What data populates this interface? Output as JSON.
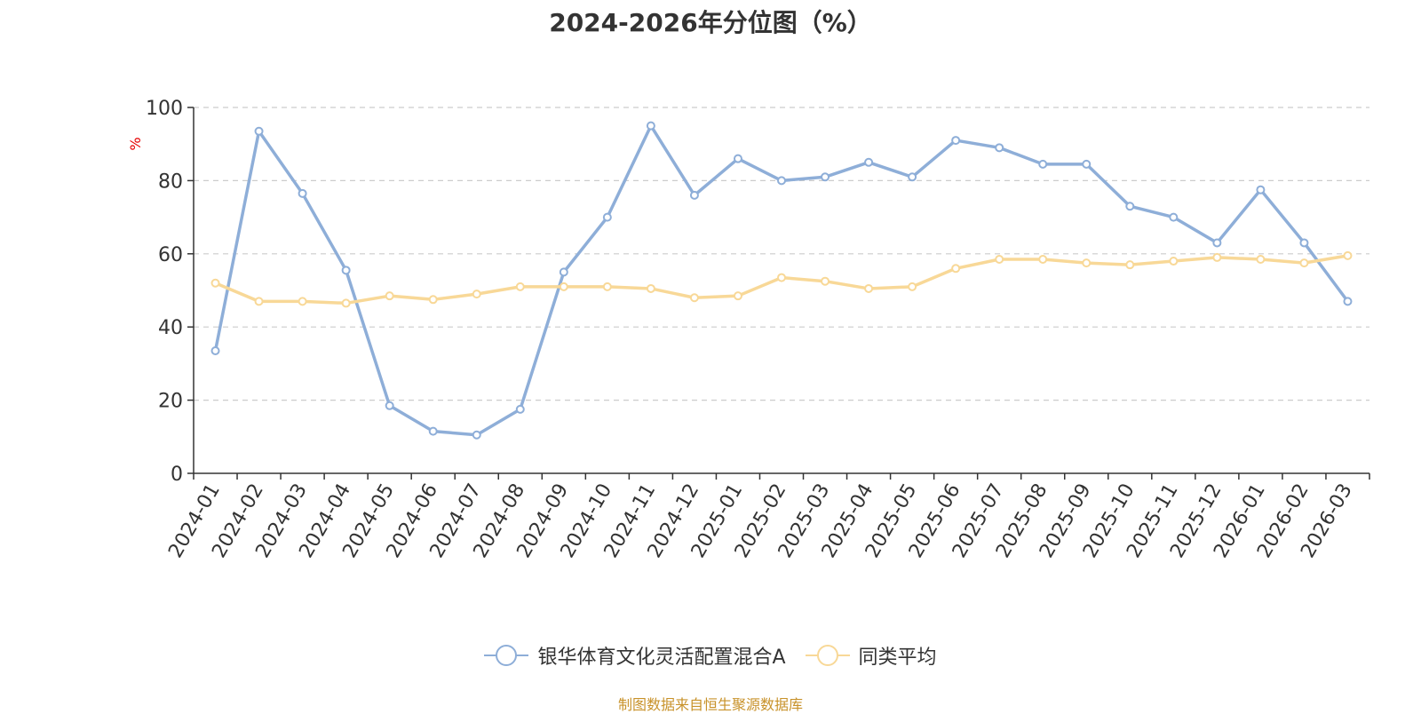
{
  "chart_data": {
    "type": "line",
    "title": "2024-2026年分位图（%）",
    "ylabel": "%",
    "xlabel": "",
    "ylim": [
      0,
      100
    ],
    "yticks": [
      0,
      20,
      40,
      60,
      80,
      100
    ],
    "grid": true,
    "legend_position": "bottom",
    "categories": [
      "2024-01",
      "2024-02",
      "2024-03",
      "2024-04",
      "2024-05",
      "2024-06",
      "2024-07",
      "2024-08",
      "2024-09",
      "2024-10",
      "2024-11",
      "2024-12",
      "2025-01",
      "2025-02",
      "2025-03",
      "2025-04",
      "2025-05",
      "2025-06",
      "2025-07",
      "2025-08",
      "2025-09",
      "2025-10",
      "2025-11",
      "2025-12",
      "2026-01",
      "2026-02",
      "2026-03"
    ],
    "series": [
      {
        "name": "银华体育文化灵活配置混合A",
        "color": "#8eaed8",
        "values": [
          33.5,
          93.5,
          76.5,
          55.5,
          18.5,
          11.5,
          10.5,
          17.5,
          55,
          70,
          95,
          76,
          86,
          80,
          81,
          85,
          81,
          91,
          89,
          84.5,
          84.5,
          73,
          70,
          63,
          77.5,
          63,
          47
        ]
      },
      {
        "name": "同类平均",
        "color": "#f8d897",
        "values": [
          52,
          47,
          47,
          46.5,
          48.5,
          47.5,
          49,
          51,
          51,
          51,
          50.5,
          48,
          48.5,
          53.5,
          52.5,
          50.5,
          51,
          56,
          58.5,
          58.5,
          57.5,
          57,
          58,
          59,
          58.5,
          57.5,
          59.5
        ]
      }
    ]
  },
  "footer": {
    "source": "制图数据来自恒生聚源数据库"
  }
}
